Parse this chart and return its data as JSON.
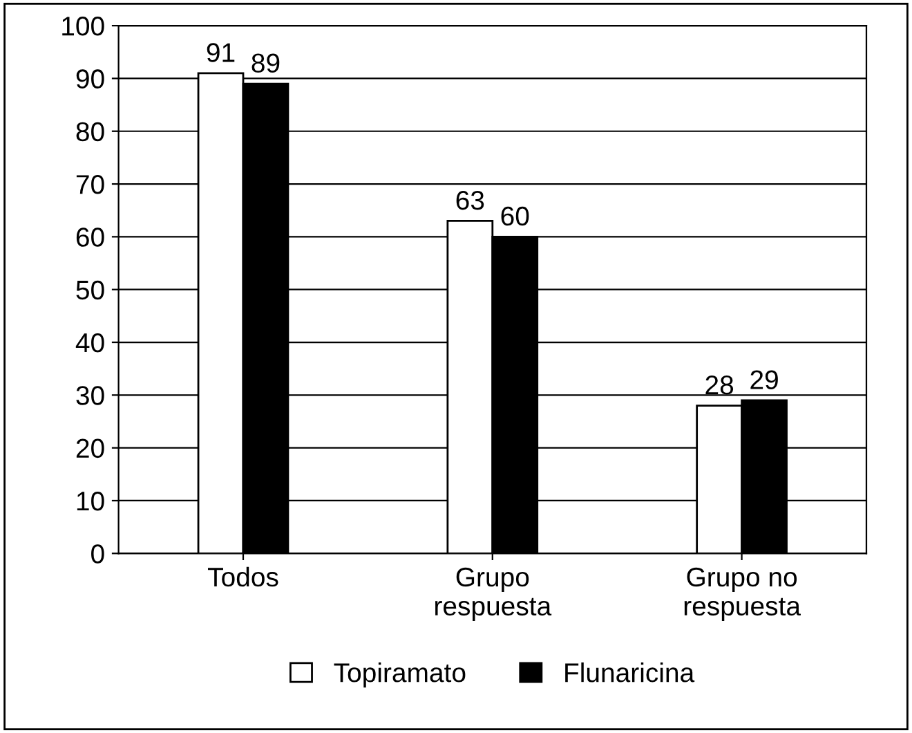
{
  "chart_data": {
    "type": "bar",
    "categories": [
      "Todos",
      "Grupo\nrespuesta",
      "Grupo no\nrespuesta"
    ],
    "series": [
      {
        "name": "Topiramato",
        "color": "#ffffff",
        "values": [
          91,
          63,
          28
        ]
      },
      {
        "name": "Flunaricina",
        "color": "#000000",
        "values": [
          89,
          60,
          29
        ]
      }
    ],
    "ylim": [
      0,
      100
    ],
    "yticks": [
      0,
      10,
      20,
      30,
      40,
      50,
      60,
      70,
      80,
      90,
      100
    ],
    "grid": "y",
    "legend": "bottom",
    "data_labels": true
  }
}
